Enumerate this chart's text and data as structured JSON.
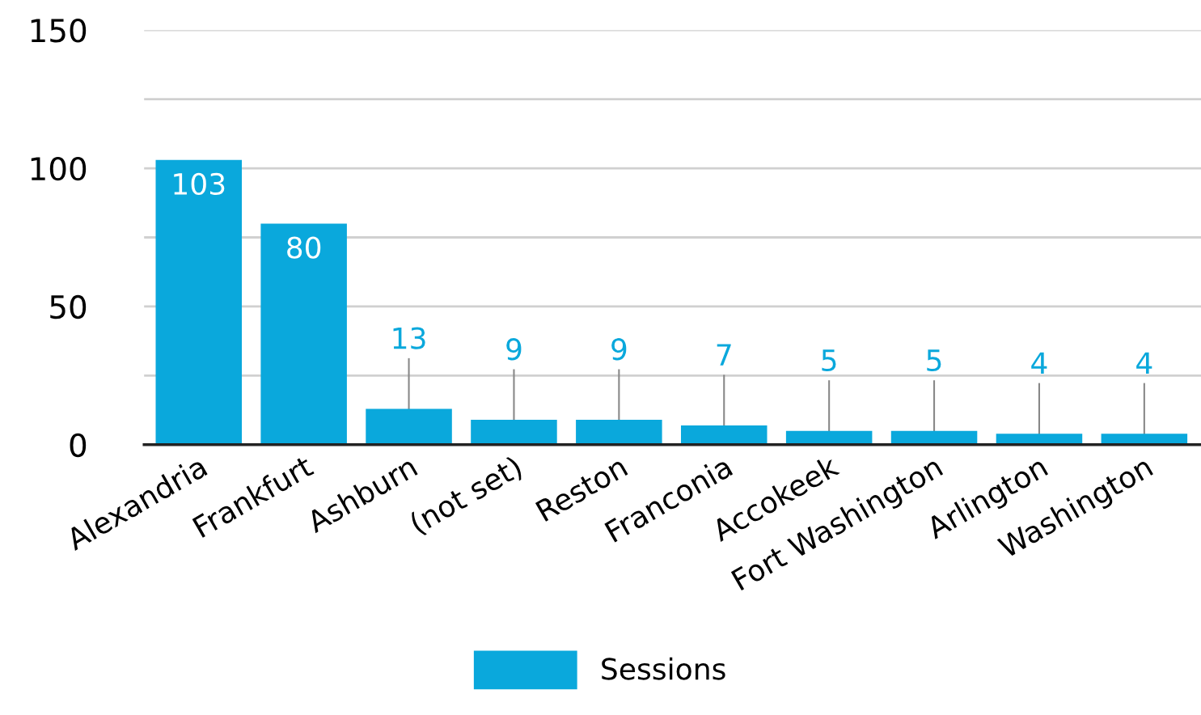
{
  "chart_data": {
    "type": "bar",
    "categories": [
      "Alexandria",
      "Frankfurt",
      "Ashburn",
      "(not set)",
      "Reston",
      "Franconia",
      "Accokeek",
      "Fort Washington",
      "Arlington",
      "Washington"
    ],
    "series": [
      {
        "name": "Sessions",
        "color": "#0aa8dc",
        "values": [
          103,
          80,
          13,
          9,
          9,
          7,
          5,
          5,
          4,
          4
        ]
      }
    ],
    "ylim": [
      0,
      150
    ],
    "yticks": [
      0,
      {
        "value": 25,
        "label": null
      },
      50,
      {
        "value": 75,
        "label": null
      },
      100,
      {
        "value": 125,
        "label": null
      },
      150
    ],
    "grid": "y",
    "legend": "bottom",
    "data_labels": true
  }
}
